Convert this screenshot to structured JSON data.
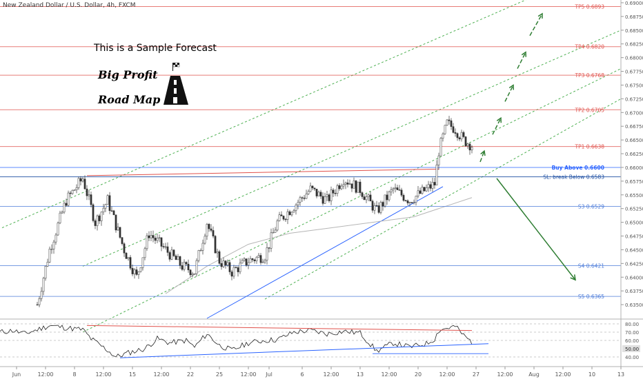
{
  "header": {
    "title": "New Zealand Dollar / U.S. Dollar, 4h, FXCM"
  },
  "annotations": {
    "sample": "This is a Sample Forecast",
    "big_profit": "Big Profit",
    "road_map": "Road Map"
  },
  "chart_data": [
    {
      "type": "line",
      "subtype": "candlestick",
      "title": "New Zealand Dollar / U.S. Dollar, 4h, FXCM",
      "ylim": [
        0.6325,
        0.6905
      ],
      "yticks": [
        0.635,
        0.6375,
        0.64,
        0.6425,
        0.645,
        0.6475,
        0.65,
        0.6525,
        0.655,
        0.6575,
        0.66,
        0.6625,
        0.665,
        0.6675,
        0.67,
        0.6725,
        0.675,
        0.6775,
        0.68,
        0.6825,
        0.685,
        0.6875,
        0.69
      ],
      "ytick_labels": [
        "0.63500",
        "0.63750",
        "0.64000",
        "0.64250",
        "0.64500",
        "0.64750",
        "0.65000",
        "0.65250",
        "0.65500",
        "0.65750",
        "0.66000",
        "0.66250",
        "0.66500",
        "0.66750",
        "0.67000",
        "0.67250",
        "0.67500",
        "0.67750",
        "0.68000",
        "0.68250",
        "0.68500",
        "0.68750",
        "0.69000"
      ],
      "xlim": [
        0,
        150
      ],
      "xticks": [
        {
          "x": 4,
          "label": "Jun"
        },
        {
          "x": 11,
          "label": "12:00"
        },
        {
          "x": 18,
          "label": "8"
        },
        {
          "x": 25,
          "label": "12:00"
        },
        {
          "x": 32,
          "label": "15"
        },
        {
          "x": 39,
          "label": "12:00"
        },
        {
          "x": 46,
          "label": "22"
        },
        {
          "x": 53,
          "label": "25"
        },
        {
          "x": 60,
          "label": "12:00"
        },
        {
          "x": 65,
          "label": "Jul"
        },
        {
          "x": 73,
          "label": "6"
        },
        {
          "x": 80,
          "label": "12:00"
        },
        {
          "x": 87,
          "label": "13"
        },
        {
          "x": 94,
          "label": "12:00"
        },
        {
          "x": 101,
          "label": "20"
        },
        {
          "x": 108,
          "label": "12:00"
        },
        {
          "x": 115,
          "label": "27"
        },
        {
          "x": 122,
          "label": "12:00"
        },
        {
          "x": 129,
          "label": "Aug"
        },
        {
          "x": 136,
          "label": "12:00"
        },
        {
          "x": 143,
          "label": "10"
        },
        {
          "x": 150,
          "label": "13"
        }
      ],
      "price_close_path": [
        [
          9,
          0.635
        ],
        [
          12,
          0.645
        ],
        [
          16,
          0.654
        ],
        [
          20,
          0.658
        ],
        [
          23,
          0.65
        ],
        [
          26,
          0.654
        ],
        [
          30,
          0.645
        ],
        [
          33,
          0.64
        ],
        [
          36,
          0.648
        ],
        [
          40,
          0.645
        ],
        [
          44,
          0.642
        ],
        [
          47,
          0.641
        ],
        [
          50,
          0.65
        ],
        [
          53,
          0.643
        ],
        [
          56,
          0.641
        ],
        [
          60,
          0.643
        ],
        [
          64,
          0.644
        ],
        [
          67,
          0.65
        ],
        [
          71,
          0.653
        ],
        [
          75,
          0.656
        ],
        [
          79,
          0.654
        ],
        [
          83,
          0.658
        ],
        [
          87,
          0.656
        ],
        [
          91,
          0.652
        ],
        [
          95,
          0.656
        ],
        [
          99,
          0.654
        ],
        [
          103,
          0.656
        ],
        [
          105,
          0.657
        ],
        [
          106,
          0.663
        ],
        [
          108,
          0.668
        ],
        [
          110,
          0.667
        ],
        [
          112,
          0.665
        ],
        [
          114,
          0.664
        ]
      ],
      "levels": [
        {
          "label": "TP5 0.6893",
          "value": 0.6893,
          "color": "#e0504a"
        },
        {
          "label": "TP4 0.6820",
          "value": 0.682,
          "color": "#e0504a"
        },
        {
          "label": "TP3 0.6768",
          "value": 0.6768,
          "color": "#e0504a"
        },
        {
          "label": "TP2 0.6705",
          "value": 0.6705,
          "color": "#e0504a"
        },
        {
          "label": "TP1 0.6638",
          "value": 0.6638,
          "color": "#e0504a"
        },
        {
          "label": "Buy Above 0.6600",
          "value": 0.66,
          "color": "#2962ff"
        },
        {
          "label": "SL: break Below 0.6583",
          "value": 0.6583,
          "color": "#1e4fa3"
        },
        {
          "label": "S3 0.6529",
          "value": 0.6529,
          "color": "#4a7ad9"
        },
        {
          "label": "S4 0.6421",
          "value": 0.6421,
          "color": "#4a7ad9"
        },
        {
          "label": "S5 0.6365",
          "value": 0.6365,
          "color": "#4a7ad9"
        }
      ],
      "grid": false,
      "colors": {
        "up": "#333333",
        "down": "#333333",
        "arrow": "#2e7d32",
        "channel": "#4caf50"
      }
    },
    {
      "type": "line",
      "title": "",
      "ylim": [
        35,
        85
      ],
      "yticks": [
        40,
        50,
        60,
        70,
        80
      ],
      "ytick_labels": [
        "40.00",
        "50.00",
        "60.00",
        "70.00",
        "80.00"
      ],
      "current_value_label": "50.00",
      "series": [
        {
          "values": [
            [
              0,
              70
            ],
            [
              3,
              72
            ],
            [
              6,
              68
            ],
            [
              9,
              73
            ],
            [
              12,
              78
            ],
            [
              15,
              76
            ],
            [
              18,
              74
            ],
            [
              20,
              73
            ],
            [
              22,
              62
            ],
            [
              24,
              55
            ],
            [
              26,
              48
            ],
            [
              28,
              40
            ],
            [
              31,
              45
            ],
            [
              35,
              50
            ],
            [
              38,
              62
            ],
            [
              41,
              57
            ],
            [
              45,
              60
            ],
            [
              47,
              52
            ],
            [
              50,
              68
            ],
            [
              53,
              54
            ],
            [
              56,
              48
            ],
            [
              60,
              57
            ],
            [
              64,
              60
            ],
            [
              67,
              61
            ],
            [
              71,
              70
            ],
            [
              75,
              72
            ],
            [
              79,
              68
            ],
            [
              83,
              71
            ],
            [
              87,
              69
            ],
            [
              91,
              47
            ],
            [
              95,
              57
            ],
            [
              99,
              52
            ],
            [
              103,
              56
            ],
            [
              105,
              62
            ],
            [
              106,
              72
            ],
            [
              108,
              75
            ],
            [
              110,
              77
            ],
            [
              112,
              66
            ],
            [
              114,
              58
            ]
          ]
        }
      ],
      "guides": [
        80,
        70,
        60,
        40
      ]
    }
  ]
}
